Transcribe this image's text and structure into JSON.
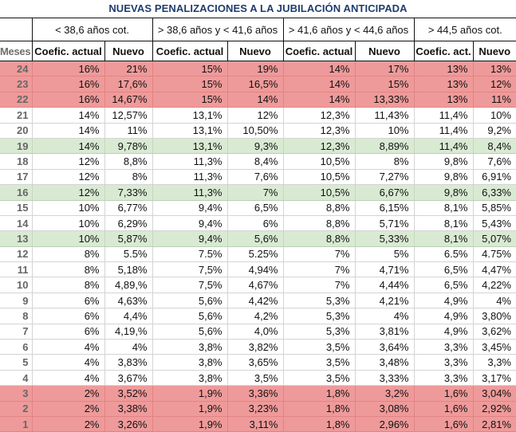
{
  "title": "NUEVAS PENALIZACIONES A LA JUBILACIÓN ANTICIPADA",
  "groups": [
    "< 38,6 años cot.",
    "> 38,6 años y < 41,6 años",
    "> 41,6 años  y < 44,6 años",
    "> 44,5 años cot."
  ],
  "headers": {
    "meses": "Meses",
    "g1_actual": "Coefic. actual",
    "g1_nuevo": "Nuevo",
    "g2_actual": "Coefic. actual",
    "g2_nuevo": "Nuevo",
    "g3_actual": "Coefic. actual",
    "g3_nuevo": "Nuevo",
    "g4_actual": "Coefic. act.",
    "g4_nuevo": "Nuevo"
  },
  "colors": {
    "title": "#1f3c6e",
    "red_row": "#ef9a9a",
    "green_row": "#d9ead3",
    "white_row": "#ffffff"
  },
  "rows": [
    {
      "mes": "24",
      "style": "red",
      "v": [
        "16%",
        "21%",
        "15%",
        "19%",
        "14%",
        "17%",
        "13%",
        "13%"
      ]
    },
    {
      "mes": "23",
      "style": "red",
      "v": [
        "16%",
        "17,6%",
        "15%",
        "16,5%",
        "14%",
        "15%",
        "13%",
        "12%"
      ]
    },
    {
      "mes": "22",
      "style": "red",
      "v": [
        "16%",
        "14,67%",
        "15%",
        "14%",
        "14%",
        "13,33%",
        "13%",
        "11%"
      ]
    },
    {
      "mes": "21",
      "style": "white",
      "v": [
        "14%",
        "12,57%",
        "13,1%",
        "12%",
        "12,3%",
        "11,43%",
        "11,4%",
        "10%"
      ]
    },
    {
      "mes": "20",
      "style": "white",
      "v": [
        "14%",
        "11%",
        "13,1%",
        "10,50%",
        "12,3%",
        "10%",
        "11,4%",
        "9,2%"
      ]
    },
    {
      "mes": "19",
      "style": "green",
      "v": [
        "14%",
        "9,78%",
        "13,1%",
        "9,3%",
        "12,3%",
        "8,89%",
        "11,4%",
        "8,4%"
      ]
    },
    {
      "mes": "18",
      "style": "white",
      "v": [
        "12%",
        "8,8%",
        "11,3%",
        "8,4%",
        "10,5%",
        "8%",
        "9,8%",
        "7,6%"
      ]
    },
    {
      "mes": "17",
      "style": "white",
      "v": [
        "12%",
        "8%",
        "11,3%",
        "7,6%",
        "10,5%",
        "7,27%",
        "9,8%",
        "6,91%"
      ]
    },
    {
      "mes": "16",
      "style": "green",
      "v": [
        "12%",
        "7,33%",
        "11,3%",
        "7%",
        "10,5%",
        "6,67%",
        "9,8%",
        "6,33%"
      ]
    },
    {
      "mes": "15",
      "style": "white",
      "v": [
        "10%",
        "6,77%",
        "9,4%",
        "6,5%",
        "8,8%",
        "6,15%",
        "8,1%",
        "5,85%"
      ]
    },
    {
      "mes": "14",
      "style": "white",
      "v": [
        "10%",
        "6,29%",
        "9,4%",
        "6%",
        "8,8%",
        "5,71%",
        "8,1%",
        "5,43%"
      ]
    },
    {
      "mes": "13",
      "style": "green",
      "v": [
        "10%",
        "5,87%",
        "9,4%",
        "5,6%",
        "8,8%",
        "5,33%",
        "8,1%",
        "5,07%"
      ]
    },
    {
      "mes": "12",
      "style": "white",
      "v": [
        "8%",
        "5.5%",
        "7.5%",
        "5.25%",
        "7%",
        "5%",
        "6.5%",
        "4.75%"
      ]
    },
    {
      "mes": "11",
      "style": "white",
      "v": [
        "8%",
        "5,18%",
        "7,5%",
        "4,94%",
        "7%",
        "4,71%",
        "6,5%",
        "4,47%"
      ]
    },
    {
      "mes": "10",
      "style": "white",
      "v": [
        "8%",
        "4,89,%",
        "7,5%",
        "4,67%",
        "7%",
        "4,44%",
        "6,5%",
        "4,22%"
      ]
    },
    {
      "mes": "9",
      "style": "white",
      "v": [
        "6%",
        "4,63%",
        "5,6%",
        "4,42%",
        "5,3%",
        "4,21%",
        "4,9%",
        "4%"
      ]
    },
    {
      "mes": "8",
      "style": "white",
      "v": [
        "6%",
        "4,4%",
        "5,6%",
        "4,2%",
        "5,3%",
        "4%",
        "4,9%",
        "3,80%"
      ]
    },
    {
      "mes": "7",
      "style": "white",
      "v": [
        "6%",
        "4,19,%",
        "5,6%",
        "4,0%",
        "5,3%",
        "3,81%",
        "4,9%",
        "3,62%"
      ]
    },
    {
      "mes": "6",
      "style": "white",
      "v": [
        "4%",
        "4%",
        "3,8%",
        "3,82%",
        "3,5%",
        "3,64%",
        "3,3%",
        "3,45%"
      ]
    },
    {
      "mes": "5",
      "style": "white",
      "v": [
        "4%",
        "3,83%",
        "3,8%",
        "3,65%",
        "3,5%",
        "3,48%",
        "3,3%",
        "3,3%"
      ]
    },
    {
      "mes": "4",
      "style": "white",
      "v": [
        "4%",
        "3,67%",
        "3,8%",
        "3,5%",
        "3,5%",
        "3,33%",
        "3,3%",
        "3,17%"
      ]
    },
    {
      "mes": "3",
      "style": "red",
      "v": [
        "2%",
        "3,52%",
        "1,9%",
        "3,36%",
        "1,8%",
        "3,2%",
        "1,6%",
        "3,04%"
      ]
    },
    {
      "mes": "2",
      "style": "red",
      "v": [
        "2%",
        "3,38%",
        "1,9%",
        "3,23%",
        "1,8%",
        "3,08%",
        "1,6%",
        "2,92%"
      ]
    },
    {
      "mes": "1",
      "style": "red",
      "v": [
        "2%",
        "3,26%",
        "1,9%",
        "3,11%",
        "1,8%",
        "2,96%",
        "1,6%",
        "2,81%"
      ]
    }
  ]
}
